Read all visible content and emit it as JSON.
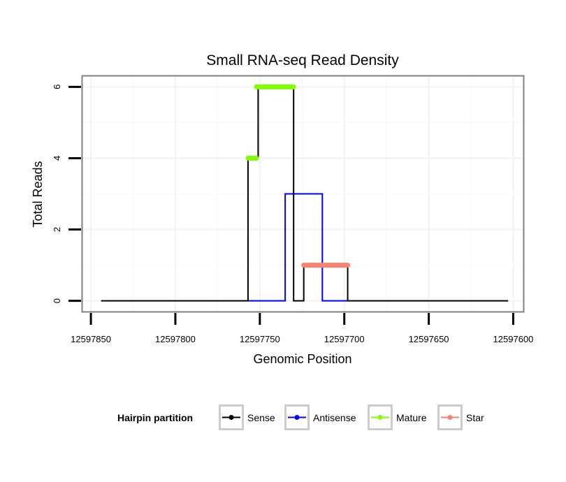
{
  "chart_data": {
    "type": "line",
    "title": "Small RNA-seq Read Density",
    "xlabel": "Genomic Position",
    "ylabel": "Total Reads",
    "x_reversed": true,
    "xlim": [
      12597855,
      12597594
    ],
    "ylim": [
      -0.3,
      6.3
    ],
    "x_ticks": [
      12597850,
      12597800,
      12597750,
      12597700,
      12597650,
      12597600
    ],
    "x_tick_labels": [
      "12597850",
      "12597800",
      "12597750",
      "12597700",
      "12597650",
      "12597600"
    ],
    "y_ticks": [
      0,
      2,
      4,
      6
    ],
    "y_tick_labels": [
      "0",
      "2",
      "4",
      "6"
    ],
    "grid": true,
    "legend": {
      "title": "Hairpin partition",
      "position": "bottom",
      "entries": [
        {
          "name": "Sense",
          "color": "#000000"
        },
        {
          "name": "Antisense",
          "color": "#0000ff"
        },
        {
          "name": "Mature",
          "color": "#7fff00"
        },
        {
          "name": "Star",
          "color": "#fa8072"
        }
      ]
    },
    "series": [
      {
        "name": "Sense",
        "color": "#000000",
        "x": [
          12597844,
          12597757,
          12597757,
          12597755,
          12597755,
          12597751,
          12597751,
          12597730,
          12597730,
          12597728,
          12597728,
          12597724,
          12597724,
          12597698,
          12597698,
          12597603
        ],
        "y": [
          0,
          0,
          4,
          4,
          4,
          4,
          6,
          6,
          0,
          0,
          0,
          0,
          1,
          1,
          0,
          0
        ]
      },
      {
        "name": "Antisense",
        "color": "#0000ff",
        "x": [
          12597757,
          12597735,
          12597735,
          12597713,
          12597713,
          12597698
        ],
        "y": [
          0,
          0,
          3,
          3,
          0,
          0
        ]
      },
      {
        "name": "Mature",
        "color": "#7fff00",
        "segments": [
          {
            "x": [
              12597757,
              12597752
            ],
            "y": [
              4,
              4
            ]
          },
          {
            "x": [
              12597752,
              12597730
            ],
            "y": [
              6,
              6
            ]
          }
        ]
      },
      {
        "name": "Star",
        "color": "#fa8072",
        "segments": [
          {
            "x": [
              12597724,
              12597698
            ],
            "y": [
              1,
              1
            ]
          }
        ]
      }
    ]
  }
}
